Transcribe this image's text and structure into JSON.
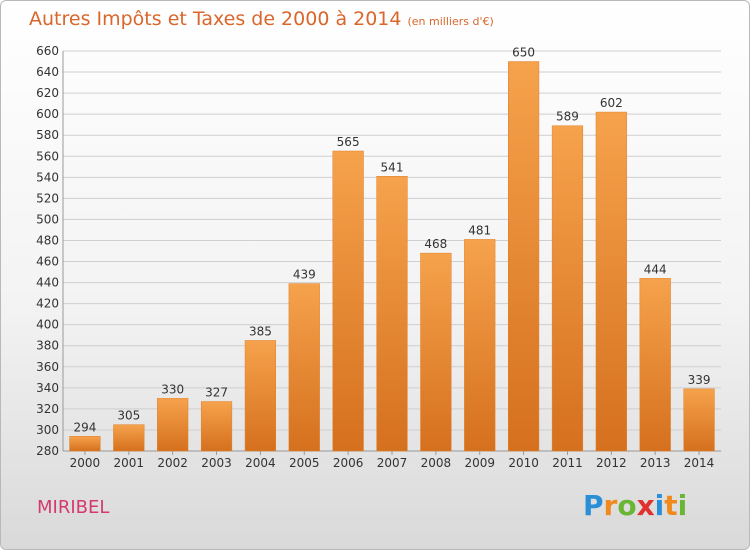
{
  "chart_data": {
    "type": "bar",
    "title": "Autres Impôts et Taxes de 2000 à 2014",
    "subtitle": "(en milliers d'€)",
    "categories": [
      "2000",
      "2001",
      "2002",
      "2003",
      "2004",
      "2005",
      "2006",
      "2007",
      "2008",
      "2009",
      "2010",
      "2011",
      "2012",
      "2013",
      "2014"
    ],
    "values": [
      294,
      305,
      330,
      327,
      385,
      439,
      565,
      541,
      468,
      481,
      650,
      589,
      602,
      444,
      339
    ],
    "xlabel": "",
    "ylabel": "",
    "ylim": [
      280,
      660
    ],
    "ytick_step": 20,
    "grid": true,
    "bar_color": "#f0922f"
  },
  "place_name": "MIRIBEL",
  "logo": {
    "letters": [
      "P",
      "r",
      "o",
      "x",
      "i",
      "t",
      "i"
    ],
    "colors": [
      "#2a8fd6",
      "#f08a1c",
      "#6ab536",
      "#e0312f",
      "#2a8fd6",
      "#f08a1c",
      "#6ab536"
    ]
  }
}
